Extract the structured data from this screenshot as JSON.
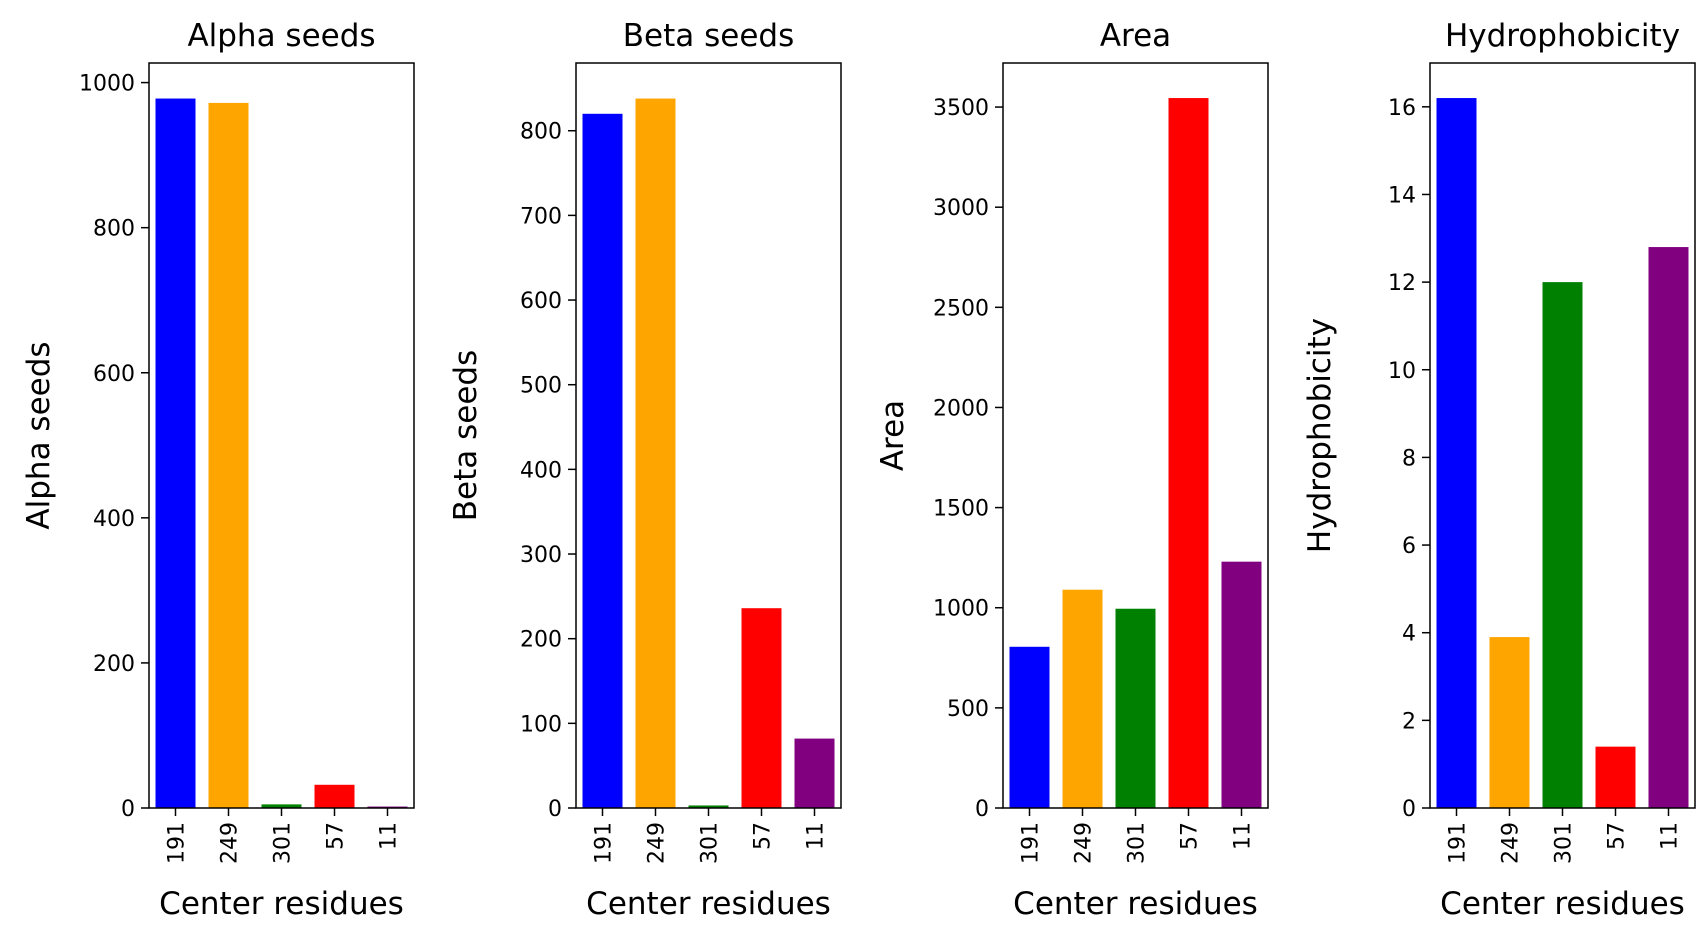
{
  "chart_data": [
    {
      "type": "bar",
      "title": "Alpha seeds",
      "xlabel": "Center residues",
      "ylabel": "Alpha seeds",
      "categories": [
        "191",
        "249",
        "301",
        "57",
        "11"
      ],
      "values": [
        978,
        972,
        5,
        32,
        2
      ],
      "colors": [
        "#0000ff",
        "#ffa500",
        "#008000",
        "#ff0000",
        "#800080"
      ],
      "ylim": [
        0,
        1027
      ],
      "yticks": [
        0,
        200,
        400,
        600,
        800,
        1000
      ]
    },
    {
      "type": "bar",
      "title": "Beta seeds",
      "xlabel": "Center residues",
      "ylabel": "Beta seeds",
      "categories": [
        "191",
        "249",
        "301",
        "57",
        "11"
      ],
      "values": [
        820,
        838,
        3,
        236,
        82
      ],
      "colors": [
        "#0000ff",
        "#ffa500",
        "#008000",
        "#ff0000",
        "#800080"
      ],
      "ylim": [
        0,
        880
      ],
      "yticks": [
        0,
        100,
        200,
        300,
        400,
        500,
        600,
        700,
        800
      ]
    },
    {
      "type": "bar",
      "title": "Area",
      "xlabel": "Center residues",
      "ylabel": "Area",
      "categories": [
        "191",
        "249",
        "301",
        "57",
        "11"
      ],
      "values": [
        805,
        1090,
        995,
        3545,
        1230
      ],
      "colors": [
        "#0000ff",
        "#ffa500",
        "#008000",
        "#ff0000",
        "#800080"
      ],
      "ylim": [
        0,
        3720
      ],
      "yticks": [
        0,
        500,
        1000,
        1500,
        2000,
        2500,
        3000,
        3500
      ]
    },
    {
      "type": "bar",
      "title": "Hydrophobicity",
      "xlabel": "Center residues",
      "ylabel": "Hydrophobicity",
      "categories": [
        "191",
        "249",
        "301",
        "57",
        "11"
      ],
      "values": [
        16.2,
        3.9,
        12.0,
        1.4,
        12.8
      ],
      "colors": [
        "#0000ff",
        "#ffa500",
        "#008000",
        "#ff0000",
        "#800080"
      ],
      "ylim": [
        0,
        17
      ],
      "yticks": [
        0,
        2,
        4,
        6,
        8,
        10,
        12,
        14,
        16
      ]
    }
  ]
}
